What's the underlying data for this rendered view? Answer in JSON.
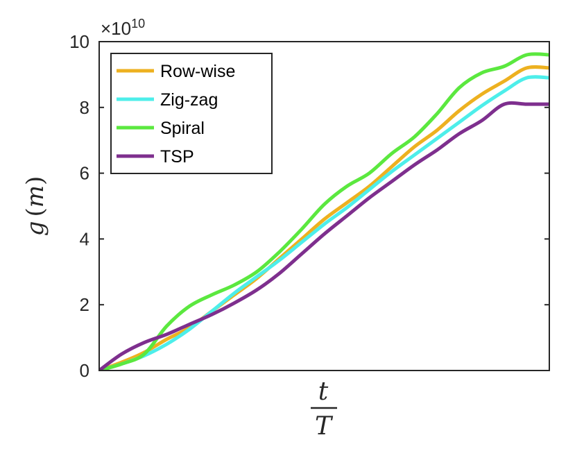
{
  "chart_data": {
    "type": "line",
    "ylabel": {
      "var": "g",
      "open": "(",
      "arg": "m",
      "close": ")"
    },
    "xlabel": {
      "numerator": "t",
      "denominator": "T"
    },
    "y_exponent": {
      "base": "×10",
      "power": "10"
    },
    "ylim": [
      0,
      10
    ],
    "yticks": [
      "0",
      "2",
      "4",
      "6",
      "8",
      "10"
    ],
    "xlim": [
      0,
      1
    ],
    "legend_position": "top-left",
    "grid": false,
    "x": [
      0,
      0.05,
      0.1,
      0.15,
      0.2,
      0.25,
      0.3,
      0.35,
      0.4,
      0.45,
      0.5,
      0.55,
      0.6,
      0.65,
      0.7,
      0.75,
      0.8,
      0.85,
      0.9,
      0.95,
      1.0
    ],
    "series": [
      {
        "name": "Row-wise",
        "color": "#EDB120",
        "values": [
          0,
          0.25,
          0.55,
          0.95,
          1.3,
          1.8,
          2.3,
          2.8,
          3.4,
          4.0,
          4.6,
          5.1,
          5.6,
          6.2,
          6.8,
          7.3,
          7.9,
          8.4,
          8.8,
          9.2,
          9.2
        ]
      },
      {
        "name": "Zig-zag",
        "color": "#4DEEEA",
        "values": [
          0,
          0.2,
          0.45,
          0.8,
          1.25,
          1.8,
          2.35,
          2.85,
          3.35,
          3.9,
          4.45,
          4.95,
          5.5,
          6.05,
          6.55,
          7.05,
          7.55,
          8.05,
          8.5,
          8.9,
          8.9
        ]
      },
      {
        "name": "Spiral",
        "color": "#5BE83F",
        "values": [
          0,
          0.2,
          0.5,
          1.35,
          1.95,
          2.3,
          2.6,
          3.0,
          3.6,
          4.3,
          5.05,
          5.6,
          6.0,
          6.6,
          7.1,
          7.8,
          8.6,
          9.05,
          9.25,
          9.6,
          9.6
        ]
      },
      {
        "name": "TSP",
        "color": "#7E2F8E",
        "values": [
          0,
          0.5,
          0.85,
          1.1,
          1.4,
          1.7,
          2.05,
          2.45,
          2.95,
          3.55,
          4.15,
          4.7,
          5.25,
          5.75,
          6.25,
          6.7,
          7.2,
          7.6,
          8.1,
          8.1,
          8.1
        ]
      }
    ]
  }
}
